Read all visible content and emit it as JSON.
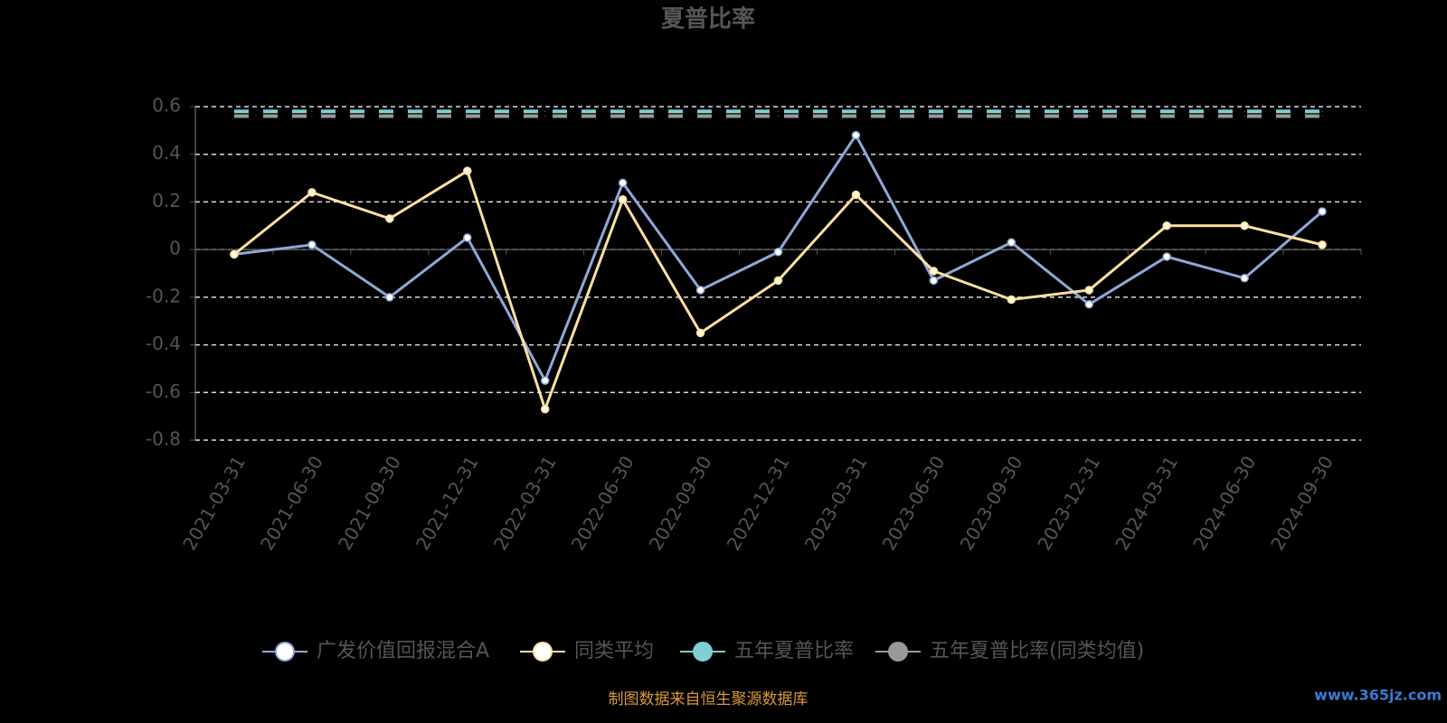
{
  "chart_data": {
    "type": "line",
    "title": "夏普比率",
    "categories": [
      "2021-03-31",
      "2021-06-30",
      "2021-09-30",
      "2021-12-31",
      "2022-03-31",
      "2022-06-30",
      "2022-09-30",
      "2022-12-31",
      "2023-03-31",
      "2023-06-30",
      "2023-09-30",
      "2023-12-31",
      "2024-03-31",
      "2024-06-30",
      "2024-09-30"
    ],
    "series": [
      {
        "name": "广发价值回报混合A",
        "color": "#8fa8d8",
        "values": [
          -0.02,
          0.02,
          -0.2,
          0.05,
          -0.55,
          0.28,
          -0.17,
          -0.01,
          0.48,
          -0.13,
          0.03,
          -0.23,
          -0.03,
          -0.12,
          0.16
        ]
      },
      {
        "name": "同类平均",
        "color": "#ffe0a0",
        "values": [
          -0.02,
          0.24,
          0.13,
          0.33,
          -0.67,
          0.21,
          -0.35,
          -0.13,
          0.23,
          -0.09,
          -0.21,
          -0.17,
          0.1,
          0.1,
          0.02
        ]
      },
      {
        "name": "五年夏普比率",
        "color": "#7ecfd6",
        "values": [
          0.58,
          0.58,
          0.58,
          0.58,
          0.58,
          0.58,
          0.58,
          0.58,
          0.58,
          0.58,
          0.58,
          0.58,
          0.58,
          0.58,
          0.58
        ]
      },
      {
        "name": "五年夏普比率(同类均值)",
        "color": "#999999",
        "values": [
          0.56,
          0.56,
          0.56,
          0.56,
          0.56,
          0.56,
          0.56,
          0.56,
          0.56,
          0.56,
          0.56,
          0.56,
          0.56,
          0.56,
          0.56
        ]
      }
    ],
    "ylim": [
      -0.8,
      0.6
    ],
    "yticks": [
      -0.8,
      -0.6,
      -0.4,
      -0.2,
      0,
      0.2,
      0.4,
      0.6
    ],
    "grid": true,
    "legend": "bottom",
    "source": "制图数据来自恒生聚源数据库",
    "watermark": "www.365jz.com"
  }
}
